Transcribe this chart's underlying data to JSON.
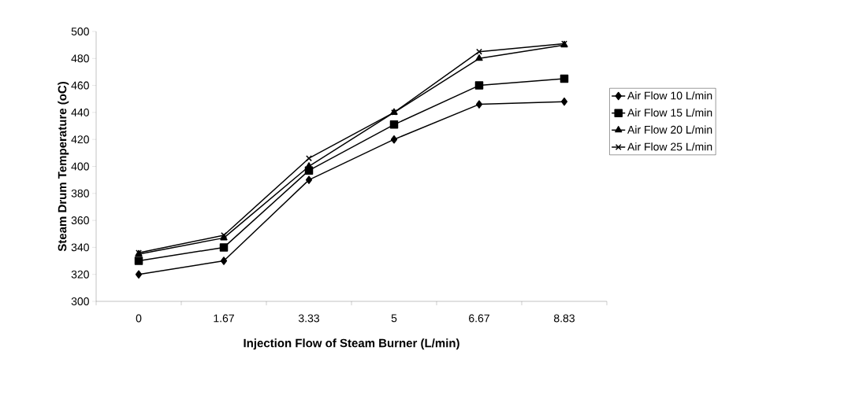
{
  "chart_data": {
    "type": "line",
    "xlabel": "Injection Flow of Steam Burner (L/min)",
    "ylabel": "Steam Drum Temperature (oC)",
    "categories": [
      "0",
      "1.67",
      "3.33",
      "5",
      "6.67",
      "8.83"
    ],
    "series": [
      {
        "name": "Air Flow  10 L/min",
        "color": "#000000",
        "marker": "diamond",
        "values": [
          320,
          330,
          390,
          420,
          446,
          448
        ]
      },
      {
        "name": "Air Flow  15 L/min",
        "color": "#000000",
        "marker": "square",
        "values": [
          330,
          340,
          397,
          431,
          460,
          465
        ]
      },
      {
        "name": "Air Flow  20 L/min",
        "color": "#000000",
        "marker": "triangle",
        "values": [
          335,
          347,
          400,
          440,
          480,
          490
        ]
      },
      {
        "name": "Air Flow  25 L/min",
        "color": "#000000",
        "marker": "cross",
        "values": [
          336,
          349,
          406,
          440,
          485,
          491
        ]
      }
    ],
    "ylim": [
      300,
      500
    ],
    "yticks": [
      300,
      320,
      340,
      360,
      380,
      400,
      420,
      440,
      460,
      480,
      500
    ],
    "grid": false,
    "legend": "right",
    "line_style": "solid"
  }
}
